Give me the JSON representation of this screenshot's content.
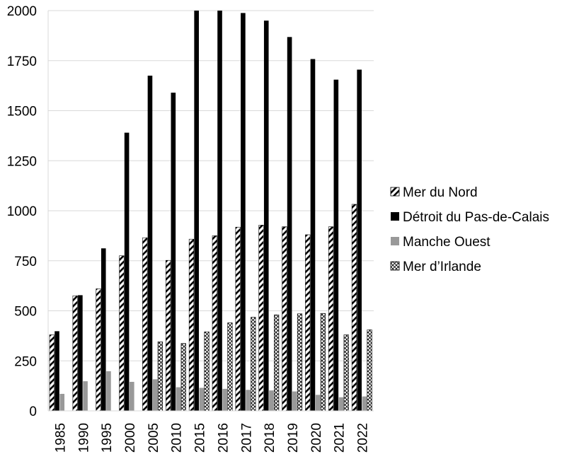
{
  "chart_data": {
    "type": "bar",
    "title": "",
    "xlabel": "",
    "ylabel": "",
    "ylim": [
      0,
      2000
    ],
    "yticks": [
      0,
      250,
      500,
      750,
      1000,
      1250,
      1500,
      1750,
      2000
    ],
    "grid": "horizontal",
    "legend_position": "right",
    "categories": [
      "1985",
      "1990",
      "1995",
      "2000",
      "2005",
      "2010",
      "2015",
      "2016",
      "2017",
      "2018",
      "2019",
      "2020",
      "2021",
      "2022"
    ],
    "series": [
      {
        "name": "Mer du Nord",
        "fill": "hatch-diagonal",
        "values": [
          380,
          575,
          610,
          775,
          865,
          752,
          858,
          875,
          918,
          928,
          920,
          880,
          920,
          1032
        ]
      },
      {
        "name": "Détroit du Pas-de-Calais",
        "fill": "#000000",
        "values": [
          398,
          578,
          812,
          1390,
          1675,
          1590,
          2000,
          2000,
          1988,
          1950,
          1868,
          1758,
          1655,
          1705
        ]
      },
      {
        "name": "Manche Ouest",
        "fill": "#999999",
        "values": [
          85,
          148,
          198,
          145,
          158,
          118,
          115,
          110,
          105,
          102,
          97,
          80,
          68,
          72
        ]
      },
      {
        "name": "Mer d’Irlande",
        "fill": "hatch-cross",
        "values": [
          null,
          null,
          null,
          null,
          345,
          337,
          395,
          440,
          468,
          480,
          485,
          487,
          380,
          405
        ]
      }
    ]
  }
}
